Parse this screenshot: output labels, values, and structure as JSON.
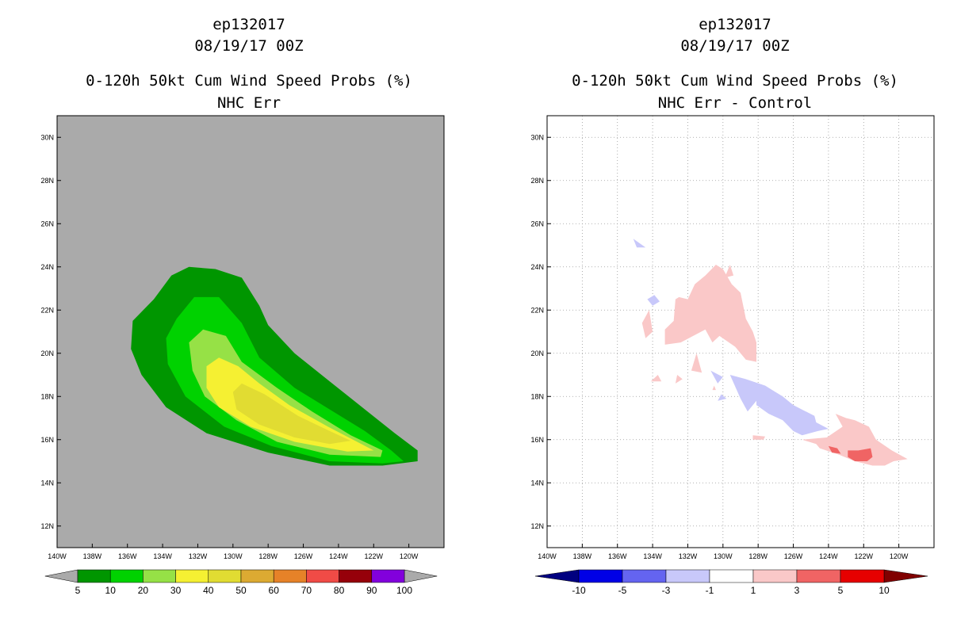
{
  "chart_data": [
    {
      "type": "heatmap",
      "title_lines": [
        "ep132017",
        "08/19/17 00Z",
        "0-120h 50kt Cum Wind Speed Probs (%)",
        "NHC Err"
      ],
      "xlabel": "",
      "ylabel": "",
      "xlim": [
        140,
        118
      ],
      "ylim": [
        11,
        31
      ],
      "x_ticks": [
        "140W",
        "138W",
        "136W",
        "134W",
        "132W",
        "130W",
        "128W",
        "126W",
        "124W",
        "122W",
        "120W"
      ],
      "y_ticks": [
        "12N",
        "14N",
        "16N",
        "18N",
        "20N",
        "22N",
        "24N",
        "26N",
        "28N",
        "30N"
      ],
      "grid": false,
      "background": "#aaaaaa",
      "colorbar": {
        "labels": [
          "5",
          "10",
          "20",
          "30",
          "40",
          "50",
          "60",
          "70",
          "80",
          "90",
          "100"
        ],
        "colors": [
          "#009600",
          "#00d200",
          "#96e146",
          "#f5f032",
          "#e1dc32",
          "#dcaa32",
          "#e68228",
          "#f04b46",
          "#96000a",
          "#8200dc"
        ],
        "ends": [
          "#aaaaaa",
          "#aaaaaa"
        ]
      },
      "levels": [
        {
          "min": 5,
          "color": "#009600",
          "outline": [
            [
              134.5,
              22.5
            ],
            [
              133.5,
              23.6
            ],
            [
              132.5,
              24.0
            ],
            [
              131,
              23.9
            ],
            [
              129.5,
              23.5
            ],
            [
              128.5,
              22.2
            ],
            [
              128,
              21.3
            ],
            [
              126.5,
              20.0
            ],
            [
              124.5,
              18.7
            ],
            [
              122.5,
              17.4
            ],
            [
              120.8,
              16.3
            ],
            [
              119.5,
              15.5
            ],
            [
              119.5,
              15.0
            ],
            [
              121.5,
              14.8
            ],
            [
              124.5,
              14.8
            ],
            [
              128,
              15.4
            ],
            [
              131.5,
              16.3
            ],
            [
              133.8,
              17.5
            ],
            [
              135.2,
              19.0
            ],
            [
              135.8,
              20.2
            ],
            [
              135.7,
              21.5
            ],
            [
              134.5,
              22.5
            ]
          ]
        },
        {
          "min": 10,
          "color": "#00d200",
          "outline": [
            [
              133.2,
              21.6
            ],
            [
              132.2,
              22.6
            ],
            [
              130.8,
              22.6
            ],
            [
              129.5,
              21.4
            ],
            [
              128.5,
              19.8
            ],
            [
              126.5,
              18.4
            ],
            [
              124.5,
              17.4
            ],
            [
              122.5,
              16.4
            ],
            [
              121,
              15.5
            ],
            [
              120.3,
              15.0
            ],
            [
              121.5,
              14.9
            ],
            [
              124.5,
              15.0
            ],
            [
              127.8,
              15.7
            ],
            [
              130.5,
              16.6
            ],
            [
              132.7,
              18.0
            ],
            [
              133.7,
              19.5
            ],
            [
              133.8,
              20.7
            ],
            [
              133.2,
              21.6
            ]
          ]
        },
        {
          "min": 20,
          "color": "#96e146",
          "outline": [
            [
              132.5,
              20.5
            ],
            [
              131.7,
              21.1
            ],
            [
              130.4,
              20.8
            ],
            [
              129.5,
              19.6
            ],
            [
              127.5,
              18.4
            ],
            [
              125.5,
              17.3
            ],
            [
              123.3,
              16.2
            ],
            [
              121.5,
              15.5
            ],
            [
              121.6,
              15.2
            ],
            [
              124.5,
              15.3
            ],
            [
              127.5,
              15.9
            ],
            [
              129.8,
              16.9
            ],
            [
              131.6,
              18.0
            ],
            [
              132.3,
              19.2
            ],
            [
              132.5,
              20.5
            ]
          ]
        },
        {
          "min": 30,
          "color": "#f5f032",
          "outline": [
            [
              131.5,
              19.4
            ],
            [
              130.8,
              19.8
            ],
            [
              129.7,
              19.4
            ],
            [
              128.5,
              18.6
            ],
            [
              126.8,
              17.6
            ],
            [
              124.6,
              16.6
            ],
            [
              122.7,
              15.8
            ],
            [
              122,
              15.5
            ],
            [
              123.5,
              15.45
            ],
            [
              126.5,
              15.9
            ],
            [
              129,
              16.6
            ],
            [
              130.8,
              17.5
            ],
            [
              131.5,
              18.4
            ],
            [
              131.5,
              19.4
            ]
          ]
        },
        {
          "min": 40,
          "color": "#e1dc32",
          "outline": [
            [
              130,
              18.2
            ],
            [
              129.5,
              18.6
            ],
            [
              128.2,
              18.1
            ],
            [
              126.3,
              17.1
            ],
            [
              124.5,
              16.4
            ],
            [
              123.3,
              15.95
            ],
            [
              124.5,
              15.8
            ],
            [
              126.5,
              16.1
            ],
            [
              128.5,
              16.7
            ],
            [
              129.8,
              17.4
            ],
            [
              130,
              18.2
            ]
          ]
        }
      ]
    },
    {
      "type": "heatmap",
      "title_lines": [
        "ep132017",
        "08/19/17 00Z",
        "0-120h 50kt Cum Wind Speed Probs (%)",
        "NHC Err - Control"
      ],
      "xlabel": "",
      "ylabel": "",
      "xlim": [
        140,
        118
      ],
      "ylim": [
        11,
        31
      ],
      "x_ticks": [
        "140W",
        "138W",
        "136W",
        "134W",
        "132W",
        "130W",
        "128W",
        "126W",
        "124W",
        "122W",
        "120W"
      ],
      "y_ticks": [
        "12N",
        "14N",
        "16N",
        "18N",
        "20N",
        "22N",
        "24N",
        "26N",
        "28N",
        "30N"
      ],
      "grid": true,
      "background": "#ffffff",
      "colorbar": {
        "labels": [
          "-10",
          "-5",
          "-3",
          "-1",
          "1",
          "3",
          "5",
          "10"
        ],
        "colors": [
          "#0000e6",
          "#6464f0",
          "#c8c8fa",
          "#ffffff",
          "#fac8c8",
          "#f06464",
          "#e60000"
        ],
        "ends": [
          "#000080",
          "#800000"
        ]
      },
      "regions": [
        {
          "color": "#fac8c8",
          "outline": [
            [
              132.5,
              22.6
            ],
            [
              132,
              22.5
            ],
            [
              131.6,
              23.2
            ],
            [
              131,
              23.6
            ],
            [
              130.4,
              24.1
            ],
            [
              130,
              23.9
            ],
            [
              129.5,
              23.2
            ],
            [
              129,
              22.8
            ],
            [
              128.7,
              21.6
            ],
            [
              128.3,
              21.0
            ],
            [
              128.1,
              20.5
            ],
            [
              128.1,
              19.6
            ],
            [
              128.7,
              19.7
            ],
            [
              129.3,
              20.3
            ],
            [
              130.2,
              20.8
            ],
            [
              130.6,
              20.5
            ],
            [
              131,
              21.1
            ],
            [
              132.4,
              20.5
            ],
            [
              133.3,
              20.4
            ],
            [
              133.3,
              21.1
            ],
            [
              132.8,
              21.5
            ],
            [
              132.7,
              22.5
            ],
            [
              132.5,
              22.6
            ]
          ]
        },
        {
          "color": "#fac8c8",
          "outline": [
            [
              129.6,
              24.1
            ],
            [
              129.4,
              23.6
            ],
            [
              129.9,
              23.5
            ],
            [
              129.6,
              24.1
            ]
          ]
        },
        {
          "color": "#fac8c8",
          "outline": [
            [
              134.2,
              22.0
            ],
            [
              134.0,
              21.0
            ],
            [
              134.4,
              20.7
            ],
            [
              134.6,
              21.4
            ],
            [
              134.2,
              22.0
            ]
          ]
        },
        {
          "color": "#fac8c8",
          "outline": [
            [
              131.5,
              20.0
            ],
            [
              131.2,
              19.1
            ],
            [
              131.8,
              19.2
            ],
            [
              131.5,
              20.0
            ]
          ]
        },
        {
          "color": "#fac8c8",
          "outline": [
            [
              133.7,
              19.0
            ],
            [
              133.5,
              18.7
            ],
            [
              134.1,
              18.7
            ],
            [
              133.7,
              19.0
            ]
          ]
        },
        {
          "color": "#fac8c8",
          "outline": [
            [
              132.6,
              19.0
            ],
            [
              132.3,
              18.8
            ],
            [
              132.7,
              18.6
            ],
            [
              132.6,
              19.0
            ]
          ]
        },
        {
          "color": "#fac8c8",
          "outline": [
            [
              130.5,
              18.5
            ],
            [
              130.4,
              18.3
            ],
            [
              130.6,
              18.3
            ],
            [
              130.5,
              18.5
            ]
          ]
        },
        {
          "color": "#fac8c8",
          "outline": [
            [
              128.3,
              16.2
            ],
            [
              128.3,
              16.0
            ],
            [
              127.7,
              16.0
            ],
            [
              127.6,
              16.15
            ],
            [
              128.3,
              16.2
            ]
          ]
        },
        {
          "color": "#fac8c8",
          "outline": [
            [
              125.5,
              16.0
            ],
            [
              124.7,
              15.8
            ],
            [
              124.5,
              15.6
            ],
            [
              123.4,
              15.3
            ],
            [
              122.5,
              15.0
            ],
            [
              121.5,
              14.8
            ],
            [
              120.8,
              14.8
            ],
            [
              120.3,
              15.0
            ],
            [
              119.5,
              15.1
            ],
            [
              120.4,
              15.5
            ],
            [
              121.3,
              16.0
            ],
            [
              121.7,
              16.6
            ],
            [
              122.5,
              16.9
            ],
            [
              123,
              17.0
            ],
            [
              123.6,
              17.2
            ],
            [
              123.2,
              16.6
            ],
            [
              124.1,
              16.1
            ],
            [
              125.5,
              16.0
            ]
          ]
        },
        {
          "color": "#f06464",
          "outline": [
            [
              122.9,
              15.5
            ],
            [
              122.3,
              15.5
            ],
            [
              121.6,
              15.6
            ],
            [
              121.5,
              15.2
            ],
            [
              121.8,
              15.0
            ],
            [
              122.5,
              15.0
            ],
            [
              122.9,
              15.2
            ],
            [
              122.9,
              15.5
            ]
          ]
        },
        {
          "color": "#f06464",
          "outline": [
            [
              124,
              15.7
            ],
            [
              123.5,
              15.6
            ],
            [
              123.3,
              15.35
            ],
            [
              123.8,
              15.4
            ],
            [
              124,
              15.7
            ]
          ]
        },
        {
          "color": "#c8c8fa",
          "outline": [
            [
              135.1,
              25.3
            ],
            [
              134.4,
              24.9
            ],
            [
              134.9,
              24.9
            ],
            [
              135.1,
              25.3
            ]
          ]
        },
        {
          "color": "#c8c8fa",
          "outline": [
            [
              133.9,
              22.7
            ],
            [
              133.6,
              22.4
            ],
            [
              134.0,
              22.2
            ],
            [
              134.3,
              22.5
            ],
            [
              133.9,
              22.7
            ]
          ]
        },
        {
          "color": "#c8c8fa",
          "outline": [
            [
              130.7,
              19.2
            ],
            [
              130.0,
              18.9
            ],
            [
              130.3,
              18.6
            ],
            [
              130.7,
              19.2
            ]
          ]
        },
        {
          "color": "#c8c8fa",
          "outline": [
            [
              129.6,
              19.0
            ],
            [
              128.7,
              18.8
            ],
            [
              127.6,
              18.5
            ],
            [
              127.2,
              18.3
            ],
            [
              126.6,
              18.0
            ],
            [
              126.0,
              17.6
            ],
            [
              124.8,
              17.1
            ],
            [
              124.7,
              16.8
            ],
            [
              124.0,
              16.5
            ],
            [
              124.6,
              16.4
            ],
            [
              125.5,
              16.2
            ],
            [
              126.0,
              16.4
            ],
            [
              126.6,
              16.9
            ],
            [
              127.4,
              17.2
            ],
            [
              128.1,
              17.6
            ],
            [
              128.1,
              17.8
            ],
            [
              128.6,
              17.3
            ],
            [
              129.0,
              17.9
            ],
            [
              129.6,
              19.0
            ]
          ]
        },
        {
          "color": "#c8c8fa",
          "outline": [
            [
              130.1,
              18.1
            ],
            [
              129.8,
              17.9
            ],
            [
              130.3,
              17.8
            ],
            [
              130.1,
              18.1
            ]
          ]
        }
      ]
    }
  ]
}
